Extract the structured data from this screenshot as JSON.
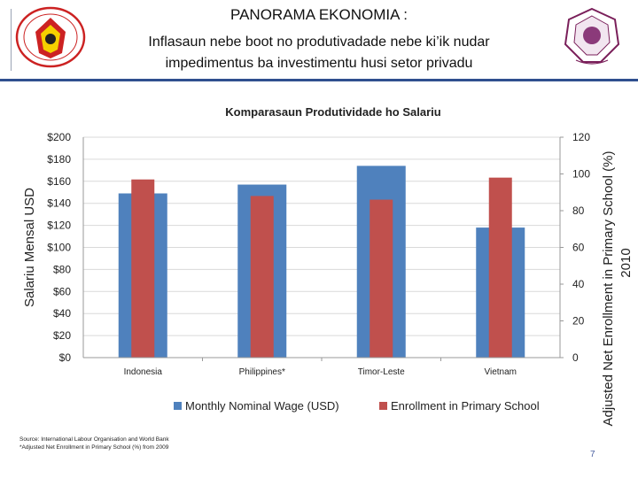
{
  "header": {
    "title": "PANORAMA EKONOMIA :",
    "subtitle_line1": "Inflasaun nebe boot no produtivadade nebe ki’ik nudar",
    "subtitle_line2": "impedimentus ba investimentu husi setor privadu"
  },
  "footer": {
    "source_line1": "Source: International Labour Organisation and World Bank",
    "source_line2": "*Adjusted Net Enrollment in Primary School (%) from 2009",
    "page_number": "7"
  },
  "colors": {
    "wage": "#4f81bd",
    "enrollment": "#c0504d",
    "rule": "#2f4f8f",
    "grid": "#d9d9d9"
  },
  "chart_data": {
    "type": "bar",
    "title": "Komparasaun Produtividade ho Salariu",
    "categories": [
      "Indonesia",
      "Philippines*",
      "Timor-Leste",
      "Vietnam"
    ],
    "series": [
      {
        "name": "Monthly Nominal Wage (USD)",
        "axis": "left",
        "values": [
          149,
          157,
          174,
          118
        ]
      },
      {
        "name": "Enrollment in Primary School",
        "axis": "right",
        "values": [
          97,
          88,
          86,
          98
        ]
      }
    ],
    "ylabel": "Salariu Mensal USD",
    "ylabel_right": "Adjusted Net Enrollment in Primary School (%) 2010",
    "ylim": [
      0,
      200
    ],
    "ylim_right": [
      0,
      120
    ],
    "yticks": [
      "$0",
      "$20",
      "$40",
      "$60",
      "$80",
      "$100",
      "$120",
      "$140",
      "$160",
      "$180",
      "$200"
    ],
    "yticks_right": [
      "0",
      "20",
      "40",
      "60",
      "80",
      "100",
      "120"
    ],
    "grid": true,
    "legend": "bottom"
  }
}
